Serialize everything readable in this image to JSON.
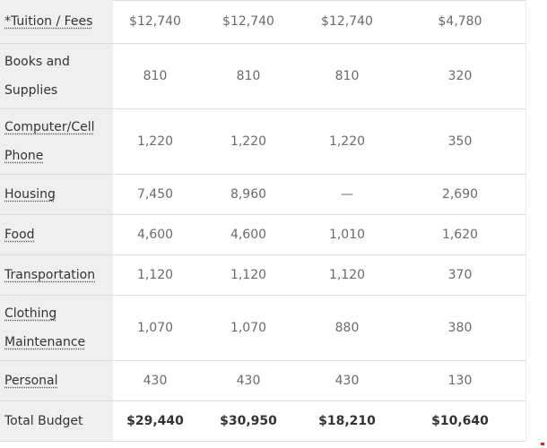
{
  "rows": [
    {
      "label": "*Tuition / Fees",
      "link": true,
      "values": [
        "$12,740",
        "$12,740",
        "$12,740",
        "$4,780"
      ]
    },
    {
      "label": "Books and Supplies",
      "link": false,
      "values": [
        "810",
        "810",
        "810",
        "320"
      ]
    },
    {
      "label": "Computer/Cell Phone",
      "link": true,
      "values": [
        "1,220",
        "1,220",
        "1,220",
        "350"
      ]
    },
    {
      "label": "Housing",
      "link": true,
      "values": [
        "7,450",
        "8,960",
        "—",
        "2,690"
      ]
    },
    {
      "label": "Food",
      "link": true,
      "values": [
        "4,600",
        "4,600",
        "1,010",
        "1,620"
      ]
    },
    {
      "label": "Transportation",
      "link": true,
      "values": [
        "1,120",
        "1,120",
        "1,120",
        "370"
      ]
    },
    {
      "label": "Clothing Maintenance",
      "link": true,
      "values": [
        "1,070",
        "1,070",
        "880",
        "380"
      ]
    },
    {
      "label": "Personal",
      "link": true,
      "values": [
        "430",
        "430",
        "430",
        "130"
      ]
    },
    {
      "label": "Total Budget",
      "link": false,
      "values": [
        "$29,440",
        "$30,950",
        "$18,210",
        "$10,640"
      ]
    }
  ]
}
